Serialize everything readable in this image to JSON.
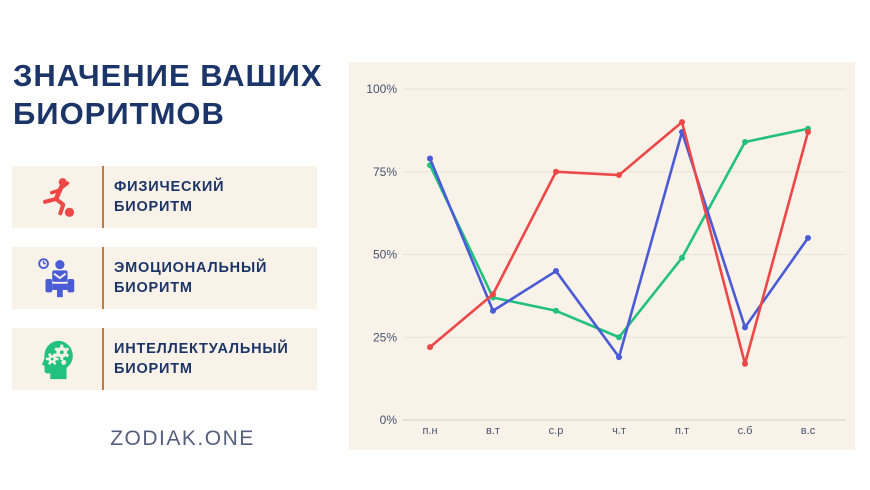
{
  "title": {
    "line1": "ЗНАЧЕНИЕ ВАШИХ",
    "line2": "БИОРИТМОВ"
  },
  "legend": {
    "panel_bg": "#f9f2e8",
    "divider_color": "#bf7a45",
    "items": [
      {
        "icon": "runner-with-ball-icon",
        "line1": "ФИЗИЧЕСКИЙ",
        "line2": "БИОРИТМ",
        "color": "#ed4747"
      },
      {
        "icon": "waiting-person-clock-icon",
        "line1": "ЭМОЦИОНАЛЬНЫЙ",
        "line2": "БИОРИТМ",
        "color": "#4a5bd6"
      },
      {
        "icon": "head-gears-icon",
        "line1": "ИНТЕЛЛЕКТУАЛЬНЫЙ",
        "line2": "БИОРИТМ",
        "color": "#22c17d"
      }
    ]
  },
  "footer": {
    "brand": "ZODIAK.ONE"
  },
  "chart_data": {
    "type": "line",
    "title": "Значение ваших биоритмов",
    "background": "#f9f2e8",
    "grid": true,
    "legend_position": "external-left-panel",
    "xlabel": "",
    "ylabel": "",
    "ylim": [
      0,
      100
    ],
    "y_ticks": [
      "0%",
      "25%",
      "50%",
      "75%",
      "100%"
    ],
    "categories": [
      "п.н",
      "в.т",
      "с.р",
      "ч.т",
      "п.т",
      "с.б",
      "в.с"
    ],
    "series": [
      {
        "name": "Физический биоритм",
        "color": "#ed4747",
        "values": [
          22,
          38,
          75,
          74,
          90,
          17,
          87
        ]
      },
      {
        "name": "Эмоциональный биоритм",
        "color": "#4a5bd6",
        "values": [
          79,
          33,
          45,
          19,
          87,
          28,
          55
        ]
      },
      {
        "name": "Интеллектуальный биоритм",
        "color": "#22c17d",
        "values": [
          77,
          37,
          33,
          25,
          49,
          84,
          88
        ]
      }
    ]
  }
}
